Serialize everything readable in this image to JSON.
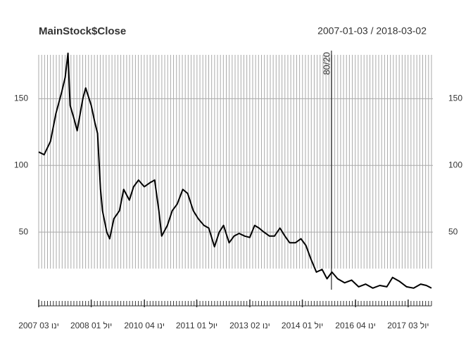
{
  "chart_data": {
    "type": "line",
    "title": "MainStock$Close",
    "subtitle": "2007-01-03 / 2018-03-02",
    "x": [
      "2007-01-03",
      "2007-02-28",
      "2007-05-05",
      "2007-07-01",
      "2007-08-30",
      "2007-10-05",
      "2007-11-03",
      "2007-11-25",
      "2008-01-08",
      "2008-02-06",
      "2008-04-05",
      "2008-05-04",
      "2008-07-01",
      "2008-08-08",
      "2008-09-05",
      "2008-10-05",
      "2008-10-26",
      "2008-12-09",
      "2009-01-08",
      "2009-02-21",
      "2009-04-20",
      "2009-06-03",
      "2009-08-01",
      "2009-09-14",
      "2009-11-04",
      "2010-01-03",
      "2010-03-02",
      "2010-04-20",
      "2010-06-03",
      "2010-07-02",
      "2010-08-30",
      "2010-10-20",
      "2010-12-10",
      "2011-02-06",
      "2011-03-29",
      "2011-05-26",
      "2011-07-17",
      "2011-09-14",
      "2011-11-03",
      "2012-01-01",
      "2012-02-20",
      "2012-04-04",
      "2012-06-01",
      "2012-07-22",
      "2012-09-13",
      "2012-11-10",
      "2013-01-01",
      "2013-02-21",
      "2013-04-07",
      "2013-05-28",
      "2013-07-25",
      "2013-09-14",
      "2013-11-10",
      "2014-01-01",
      "2014-02-20",
      "2014-04-19",
      "2014-06-17",
      "2014-08-07",
      "2014-09-27",
      "2014-11-24",
      "2015-01-22",
      "2015-03-14",
      "2015-05-04",
      "2015-07-02",
      "2015-09-13",
      "2015-11-24",
      "2016-02-05",
      "2016-04-18",
      "2016-07-01",
      "2016-09-12",
      "2016-11-24",
      "2017-01-22",
      "2017-04-05",
      "2017-06-17",
      "2017-08-29",
      "2017-11-10",
      "2018-01-08",
      "2018-03-02"
    ],
    "values": [
      110,
      108,
      118,
      139,
      155,
      166,
      184,
      145,
      134,
      126,
      150,
      158,
      145,
      132,
      124,
      82,
      66,
      50,
      45,
      60,
      66,
      82,
      74,
      84,
      89,
      84,
      87,
      89,
      66,
      47,
      55,
      66,
      71,
      82,
      79,
      66,
      60,
      55,
      53,
      39,
      50,
      55,
      42,
      47,
      49,
      47,
      46,
      55,
      53,
      50,
      47,
      47,
      53,
      47,
      42,
      42,
      45,
      40,
      30,
      20,
      22,
      15,
      20,
      15,
      12,
      14,
      9,
      11,
      8,
      10,
      9,
      16,
      13,
      9,
      8,
      11,
      10,
      8
    ],
    "color": "#000000",
    "xlim": [
      "2007-01-03",
      "2018-03-02"
    ],
    "xticks": [
      {
        "value": "2007-01-03",
        "label": "2007 03 ינו"
      },
      {
        "value": "2008-07-01",
        "label": "2008 01 יול"
      },
      {
        "value": "2010-01-04",
        "label": "2010 04 ינו"
      },
      {
        "value": "2011-07-01",
        "label": "2011 01 יול"
      },
      {
        "value": "2013-01-02",
        "label": "2013 02 ינו"
      },
      {
        "value": "2014-07-01",
        "label": "2014 01 יול"
      },
      {
        "value": "2016-01-04",
        "label": "2016 04 ינו"
      },
      {
        "value": "2017-07-03",
        "label": "2017 03 יול"
      }
    ],
    "ylim": [
      0,
      186
    ],
    "yticks": [
      50,
      100,
      150
    ],
    "grid": true,
    "annotation": {
      "x": "2015-04-29",
      "label": "80/20"
    }
  }
}
